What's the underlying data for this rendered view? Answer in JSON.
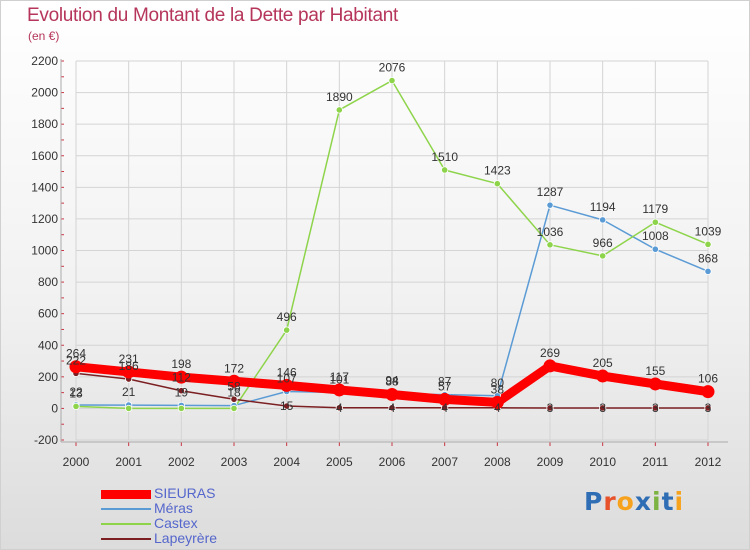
{
  "title": "Evolution du Montant de la Dette par Habitant",
  "subtitle": "(en €)",
  "logo": {
    "text": "Proxiti",
    "letter_colors": [
      "#2f6db5",
      "#e8522b",
      "#f6a21c",
      "#2f6db5",
      "#7cb342",
      "#2f6db5",
      "#f6a21c"
    ]
  },
  "chart_data": {
    "type": "line",
    "title": "Evolution du Montant de la Dette par Habitant",
    "subtitle": "(en €)",
    "x": [
      "2000",
      "2001",
      "2002",
      "2003",
      "2004",
      "2005",
      "2006",
      "2007",
      "2008",
      "2009",
      "2010",
      "2011",
      "2012"
    ],
    "ylim": [
      -200,
      2200
    ],
    "yticks": [
      -200,
      0,
      200,
      400,
      600,
      800,
      1000,
      1200,
      1400,
      1600,
      1800,
      2000,
      2200
    ],
    "grid": true,
    "legend_position": "bottom-left",
    "series": [
      {
        "name": "SIEURAS",
        "color": "#ff0000",
        "values": [
          264,
          231,
          198,
          172,
          146,
          117,
          88,
          57,
          38,
          269,
          205,
          155,
          106
        ],
        "labels": [
          "264",
          "231",
          "198",
          "172",
          "146",
          "117",
          "88",
          "57",
          "38",
          "269",
          "205",
          "155",
          "106"
        ]
      },
      {
        "name": "Méras",
        "color": "#5b9bd5",
        "values": [
          22,
          21,
          19,
          18,
          107,
          101,
          94,
          87,
          80,
          1287,
          1194,
          1008,
          868
        ],
        "labels": [
          "22",
          "21",
          "19",
          "18",
          "107",
          "101",
          "94",
          "87",
          "80",
          "1287",
          "1194",
          "1008",
          "868"
        ]
      },
      {
        "name": "Castex",
        "color": "#8ed44b",
        "values": [
          13,
          0,
          0,
          0,
          496,
          1890,
          2076,
          1510,
          1423,
          1036,
          966,
          1179,
          1039
        ],
        "labels": [
          "13",
          "",
          "",
          "",
          "496",
          "1890",
          "2076",
          "1510",
          "1423",
          "1036",
          "966",
          "1179",
          "1039"
        ]
      },
      {
        "name": "Lapeyrère",
        "color": "#7b1f22",
        "values": [
          222,
          186,
          112,
          58,
          15,
          4,
          4,
          4,
          4,
          3,
          3,
          3,
          3
        ],
        "labels": [
          "222",
          "186",
          "112",
          "58",
          "15",
          "4",
          "4",
          "4",
          "4",
          "3",
          "3",
          "3",
          "3"
        ]
      }
    ]
  }
}
